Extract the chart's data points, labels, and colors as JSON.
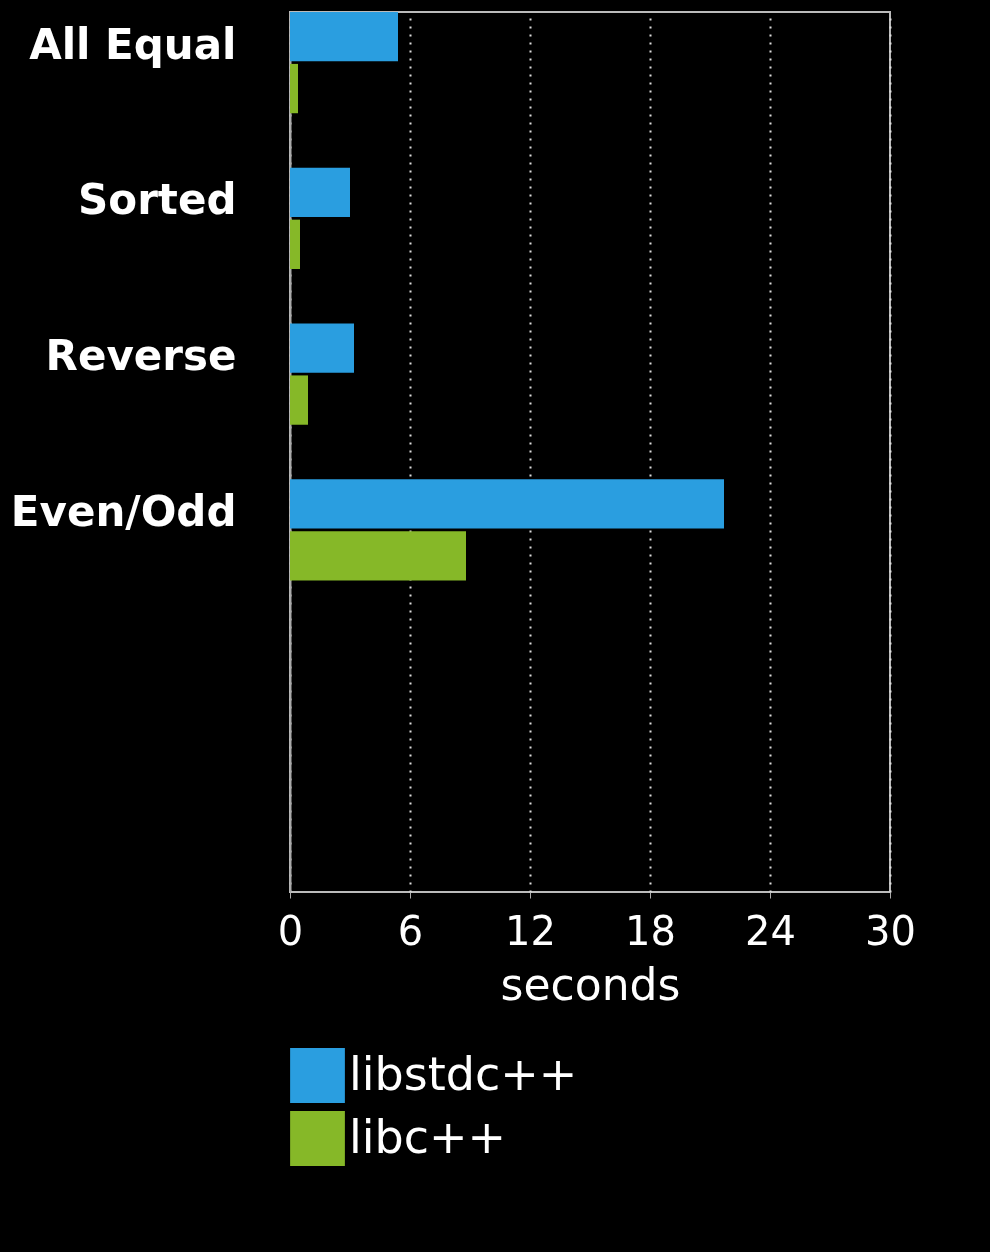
{
  "chart_data": {
    "type": "bar",
    "orientation": "horizontal",
    "xlabel": "seconds",
    "categories": [
      "All Equal",
      "Sorted",
      "Reverse",
      "Even/Odd"
    ],
    "series": [
      {
        "name": "libstdc++",
        "color": "#2a9ee0",
        "values": [
          5.4,
          3.0,
          3.2,
          21.7
        ]
      },
      {
        "name": "libc++",
        "color": "#86b828",
        "values": [
          0.4,
          0.5,
          0.9,
          8.8
        ]
      }
    ],
    "xlim": [
      0,
      30
    ],
    "xticks": [
      0,
      6,
      12,
      18,
      24,
      30
    ],
    "grid": "x",
    "legend": "bottom"
  }
}
